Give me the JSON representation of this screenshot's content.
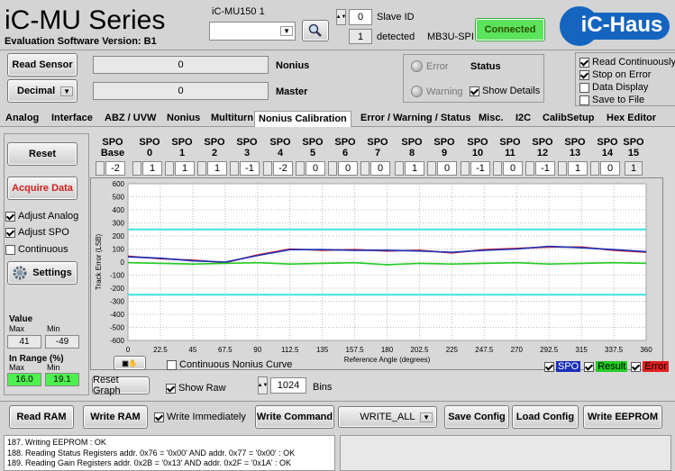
{
  "header": {
    "title": "iC-MU Series",
    "subtitle": "Evaluation Software Version: B1",
    "device_label": "iC-MU150 1",
    "slave_id_label": "Slave ID",
    "slave_id": 0,
    "detected_count": 1,
    "detected_label": "detected",
    "interface": "MB3U-SPI",
    "connection_button": "Connected",
    "logo": "iC-Haus"
  },
  "sensor": {
    "read_button": "Read Sensor",
    "format_button": "Decimal",
    "nonius_value": 0,
    "nonius_label": "Nonius",
    "master_value": 0,
    "master_label": "Master"
  },
  "status": {
    "error": "Error",
    "warning": "Warning",
    "title": "Status",
    "show_details": {
      "label": "Show Details",
      "checked": true
    }
  },
  "options": [
    {
      "label": "Read Continuously",
      "checked": true
    },
    {
      "label": "Stop on Error",
      "checked": true
    },
    {
      "label": "Data Display",
      "checked": false
    },
    {
      "label": "Save to File",
      "checked": false
    }
  ],
  "tabs": {
    "items": [
      "Analog",
      "Interface",
      "ABZ / UVW",
      "Nonius",
      "Multiturn",
      "Nonius Calibration",
      "Error / Warning / Status",
      "Misc.",
      "I2C",
      "CalibSetup",
      "Hex Editor"
    ],
    "active": 5
  },
  "left_panel": {
    "reset": "Reset",
    "acquire": "Acquire Data",
    "adjust_analog": {
      "label": "Adjust Analog",
      "checked": true
    },
    "adjust_spo": {
      "label": "Adjust SPO",
      "checked": true
    },
    "continuous": {
      "label": "Continuous",
      "checked": false
    },
    "settings": "Settings",
    "value_title": "Value",
    "value_max_label": "Max",
    "value_min_label": "Min",
    "value_max": 41,
    "value_min": -49,
    "range_title": "In Range (%)",
    "range_max_label": "Max",
    "range_min_label": "Min",
    "range_max": "16.0",
    "range_min": "19.1"
  },
  "spo": {
    "headers": [
      "SPO Base",
      "SPO 0",
      "SPO 1",
      "SPO 2",
      "SPO 3",
      "SPO 4",
      "SPO 5",
      "SPO 6",
      "SPO 7",
      "SPO 8",
      "SPO 9",
      "SPO 10",
      "SPO 11",
      "SPO 12",
      "SPO 13",
      "SPO 14",
      "SPO 15"
    ],
    "values": [
      -2,
      1,
      1,
      1,
      -1,
      -2,
      0,
      0,
      0,
      1,
      0,
      -1,
      0,
      -1,
      1,
      0,
      1
    ]
  },
  "chart_data": {
    "type": "line",
    "ylabel": "Track Error (LSB)",
    "xlabel": "Reference Angle (degrees)",
    "x": [
      0,
      22.5,
      45,
      67.5,
      90,
      112.5,
      135,
      157.5,
      180,
      202.5,
      225,
      247.5,
      270,
      292.5,
      315,
      337.5,
      360
    ],
    "xlim": [
      0,
      360
    ],
    "xticks": [
      0,
      22.5,
      45,
      67.5,
      90,
      112.5,
      135,
      157.5,
      180,
      202.5,
      225,
      247.5,
      270,
      292.5,
      315,
      337.5,
      360
    ],
    "ylim": [
      -600,
      600
    ],
    "yticks": [
      -600,
      -500,
      -400,
      -300,
      -200,
      -100,
      0,
      100,
      200,
      300,
      400,
      500,
      600
    ],
    "grid": true,
    "reference_lines": [
      {
        "value": 250,
        "color": "#40e0e0"
      },
      {
        "value": -250,
        "color": "#40e0e0"
      }
    ],
    "series": [
      {
        "name": "Error",
        "color": "#e02020",
        "visible": true,
        "values": [
          45,
          25,
          15,
          -5,
          55,
          100,
          90,
          95,
          85,
          90,
          70,
          95,
          105,
          115,
          115,
          90,
          75
        ]
      },
      {
        "name": "SPO",
        "color": "#1a2fb8",
        "visible": true,
        "values": [
          40,
          30,
          10,
          0,
          50,
          95,
          95,
          90,
          90,
          85,
          75,
          90,
          100,
          120,
          110,
          95,
          80
        ]
      },
      {
        "name": "Result",
        "color": "#22cc22",
        "visible": true,
        "values": [
          -5,
          -10,
          -15,
          -10,
          -5,
          -15,
          -10,
          -5,
          -20,
          -10,
          -15,
          -10,
          -5,
          -15,
          -10,
          -5,
          -10
        ]
      }
    ]
  },
  "chart_controls": {
    "continuous_curve": {
      "label": "Continuous Nonius Curve",
      "checked": false
    },
    "reset_graph": "Reset Graph",
    "show_raw": {
      "label": "Show Raw",
      "checked": true
    },
    "bins": 1024,
    "bins_label": "Bins"
  },
  "bottom": {
    "read_ram": "Read RAM",
    "write_ram": "Write RAM",
    "write_immediately": {
      "label": "Write Immediately",
      "checked": true
    },
    "write_command": "Write Command",
    "command": "WRITE_ALL",
    "save_config": "Save Config",
    "load_config": "Load Config",
    "write_eeprom": "Write EEPROM"
  },
  "log": [
    "187. Writing EEPROM : OK",
    "188. Reading Status Registers addr. 0x76 = '0x00' AND addr. 0x77 = '0x00' : OK",
    "189. Reading Gain Registers addr. 0x2B = '0x13' AND addr. 0x2F = '0x1A' : OK"
  ]
}
